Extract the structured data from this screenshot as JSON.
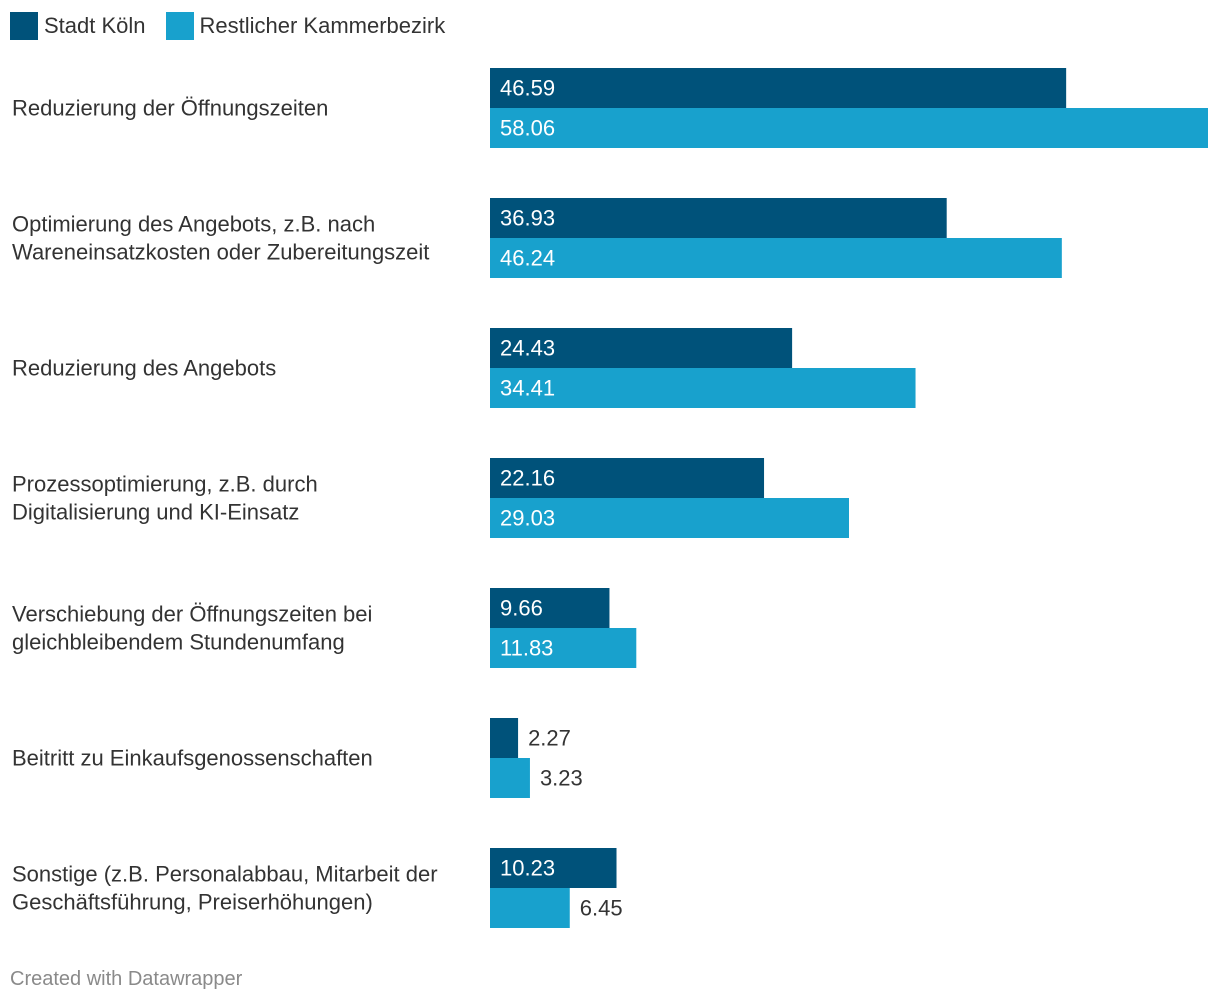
{
  "chart_data": {
    "type": "bar",
    "orientation": "horizontal",
    "categories": [
      [
        "Reduzierung der Öffnungszeiten"
      ],
      [
        "Optimierung des Angebots, z.B. nach",
        "Wareneinsatzkosten oder Zubereitungszeit"
      ],
      [
        "Reduzierung des Angebots"
      ],
      [
        "Prozessoptimierung, z.B. durch",
        "Digitalisierung und KI-Einsatz"
      ],
      [
        "Verschiebung der Öffnungszeiten bei",
        "gleichbleibendem Stundenumfang"
      ],
      [
        "Beitritt zu Einkaufsgenossenschaften"
      ],
      [
        "Sonstige (z.B. Personalabbau, Mitarbeit der",
        "Geschäftsführung, Preiserhöhungen)"
      ]
    ],
    "series": [
      {
        "name": "Stadt Köln",
        "color": "#00527a",
        "values": [
          46.59,
          36.93,
          24.43,
          22.16,
          9.66,
          2.27,
          10.23
        ],
        "labels": [
          "46.59",
          "36.93",
          "24.43",
          "22.16",
          "9.66",
          "2.27",
          "10.23"
        ]
      },
      {
        "name": "Restlicher Kammerbezirk",
        "color": "#18a1cd",
        "values": [
          58.06,
          46.24,
          34.41,
          29.03,
          11.83,
          3.23,
          6.45
        ],
        "labels": [
          "58.06",
          "46.24",
          "34.41",
          "29.03",
          "11.83",
          "3.23",
          "6.45"
        ]
      }
    ],
    "xlim": [
      0,
      58.06
    ],
    "legend_position": "top-left",
    "grid": false
  },
  "footer": "Created with Datawrapper"
}
